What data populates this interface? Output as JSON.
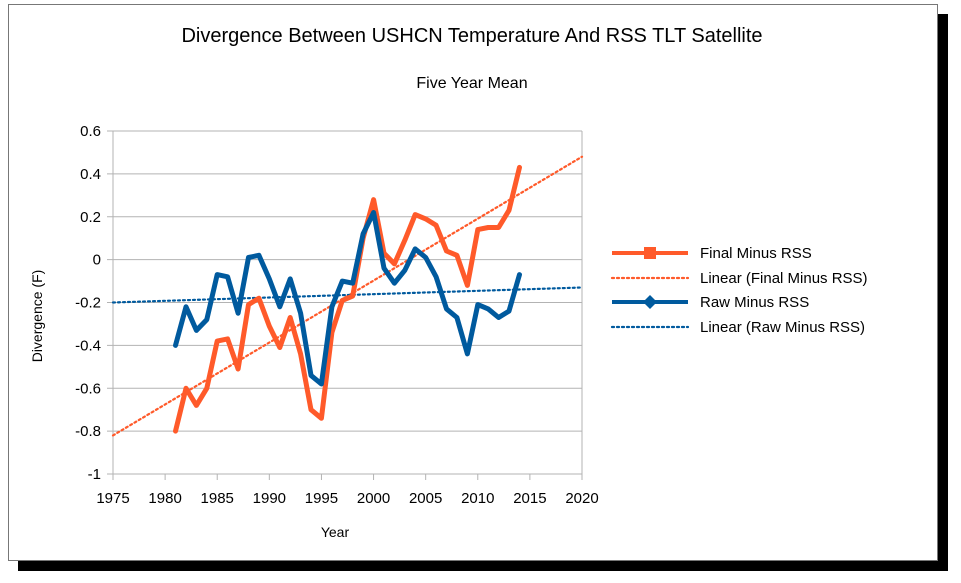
{
  "chart_data": {
    "type": "line",
    "title": "Divergence Between USHCN Temperature And RSS TLT Satellite",
    "subtitle": "Five Year Mean",
    "xlabel": "Year",
    "ylabel": "Divergence (F)",
    "xlim": [
      1975,
      2020
    ],
    "ylim": [
      -1,
      0.6
    ],
    "x_ticks": [
      "1975",
      "1980",
      "1985",
      "1990",
      "1995",
      "2000",
      "2005",
      "2010",
      "2015",
      "2020"
    ],
    "y_ticks": [
      "0.6",
      "0.4",
      "0.2",
      "0",
      "-0.2",
      "-0.4",
      "-0.6",
      "-0.8",
      "-1"
    ],
    "grid": "horizontal",
    "legend_position": "right",
    "x": [
      1981,
      1982,
      1983,
      1984,
      1985,
      1986,
      1987,
      1988,
      1989,
      1990,
      1991,
      1992,
      1993,
      1994,
      1995,
      1996,
      1997,
      1998,
      1999,
      2000,
      2001,
      2002,
      2003,
      2004,
      2005,
      2006,
      2007,
      2008,
      2009,
      2010,
      2011,
      2012,
      2013,
      2014
    ],
    "series": [
      {
        "name": "Final Minus RSS",
        "color": "#ff5a2a",
        "marker": "square",
        "values": [
          -0.8,
          -0.6,
          -0.68,
          -0.6,
          -0.38,
          -0.37,
          -0.51,
          -0.21,
          -0.18,
          -0.31,
          -0.41,
          -0.27,
          -0.44,
          -0.7,
          -0.74,
          -0.34,
          -0.19,
          -0.17,
          0.1,
          0.28,
          0.03,
          -0.02,
          0.09,
          0.21,
          0.19,
          0.16,
          0.04,
          0.02,
          -0.12,
          0.14,
          0.15,
          0.15,
          0.23,
          0.43
        ]
      },
      {
        "name": "Raw Minus RSS",
        "color": "#005a9e",
        "marker": "diamond",
        "values": [
          -0.4,
          -0.22,
          -0.33,
          -0.28,
          -0.07,
          -0.08,
          -0.25,
          0.01,
          0.02,
          -0.09,
          -0.22,
          -0.09,
          -0.25,
          -0.54,
          -0.58,
          -0.22,
          -0.1,
          -0.11,
          0.12,
          0.22,
          -0.04,
          -0.11,
          -0.05,
          0.05,
          0.01,
          -0.08,
          -0.23,
          -0.27,
          -0.44,
          -0.21,
          -0.23,
          -0.27,
          -0.24,
          -0.07
        ]
      }
    ],
    "trendlines": [
      {
        "name": "Linear (Final Minus RSS)",
        "color": "#ff5a2a",
        "style": "dotted",
        "x": [
          1975,
          2020
        ],
        "y": [
          -0.82,
          0.48
        ]
      },
      {
        "name": "Linear (Raw Minus RSS)",
        "color": "#005a9e",
        "style": "dotted",
        "x": [
          1975,
          2020
        ],
        "y": [
          -0.2,
          -0.13
        ]
      }
    ]
  }
}
